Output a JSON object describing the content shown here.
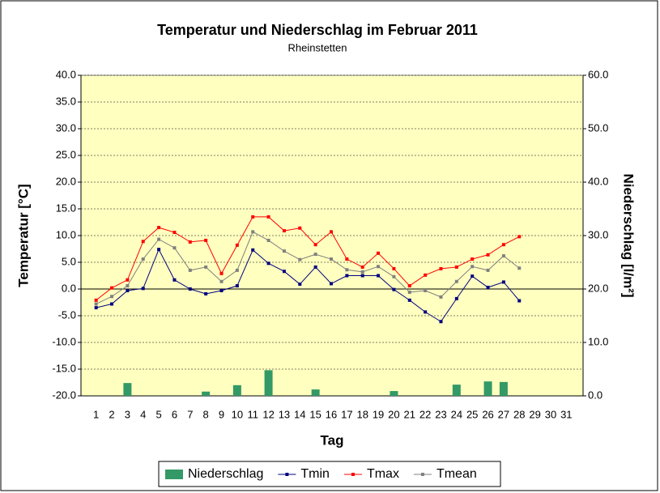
{
  "chart_data": {
    "type": "combo",
    "title": "Temperatur und Niederschlag im Februar 2011",
    "subtitle": "Rheinstetten",
    "xlabel": "Tag",
    "ylabel": "Temperatur [°C]",
    "y2label": "Niederschlag [l/m²]",
    "categories": [
      "1",
      "2",
      "3",
      "4",
      "5",
      "6",
      "7",
      "8",
      "9",
      "10",
      "11",
      "12",
      "13",
      "14",
      "15",
      "16",
      "17",
      "18",
      "19",
      "20",
      "21",
      "22",
      "23",
      "24",
      "25",
      "26",
      "27",
      "28",
      "29",
      "30",
      "31"
    ],
    "series": [
      {
        "name": "Niederschlag",
        "type": "bar",
        "axis": "y2",
        "color": "#339966",
        "values": [
          0,
          0,
          2.4,
          0,
          0,
          0,
          0,
          0.8,
          0,
          2.0,
          0,
          4.8,
          0,
          0,
          1.2,
          0,
          0,
          0,
          0,
          0.9,
          0,
          0,
          0,
          2.1,
          0,
          2.7,
          2.6,
          0,
          null,
          null,
          null
        ]
      },
      {
        "name": "Tmin",
        "type": "line",
        "color": "#000080",
        "values": [
          -3.5,
          -2.8,
          -0.3,
          0.1,
          7.4,
          1.7,
          0,
          -0.9,
          -0.3,
          0.6,
          7.3,
          4.8,
          3.3,
          0.9,
          4.1,
          1.0,
          2.5,
          2.5,
          2.5,
          -0.1,
          -2.1,
          -4.3,
          -6.1,
          -1.8,
          2.4,
          0.3,
          1.3,
          -2.2,
          null,
          null,
          null
        ]
      },
      {
        "name": "Tmax",
        "type": "line",
        "color": "#ff0000",
        "values": [
          -2.1,
          0.2,
          1.7,
          8.9,
          11.5,
          10.6,
          8.8,
          9.1,
          2.9,
          8.2,
          13.5,
          13.5,
          10.9,
          11.4,
          8.3,
          10.7,
          5.6,
          4.1,
          6.7,
          3.8,
          0.6,
          2.6,
          3.8,
          4.1,
          5.6,
          6.4,
          8.3,
          9.8,
          null,
          null,
          null
        ]
      },
      {
        "name": "Tmean",
        "type": "line",
        "color": "#808080",
        "values": [
          -2.8,
          -1.4,
          0.6,
          5.6,
          9.3,
          7.7,
          3.5,
          4.1,
          1.4,
          3.5,
          10.7,
          9.1,
          7.1,
          5.5,
          6.5,
          5.6,
          3.6,
          3.2,
          4.2,
          2.3,
          -0.6,
          -0.3,
          -1.5,
          1.4,
          4.2,
          3.5,
          6.2,
          3.9,
          null,
          null,
          null
        ]
      }
    ],
    "ylim": [
      -20,
      40
    ],
    "yticks": [
      {
        "value": 40,
        "label": "40.0"
      },
      {
        "value": 35,
        "label": "35.0"
      },
      {
        "value": 30,
        "label": "30.0"
      },
      {
        "value": 25,
        "label": "25.0"
      },
      {
        "value": 20,
        "label": "20.0"
      },
      {
        "value": 15,
        "label": "15.0"
      },
      {
        "value": 10,
        "label": "10.0"
      },
      {
        "value": 5,
        "label": "5.0"
      },
      {
        "value": 0,
        "label": "0.0"
      },
      {
        "value": -5,
        "label": "-5.0"
      },
      {
        "value": -10,
        "label": "-10.0"
      },
      {
        "value": -15,
        "label": "-15.0"
      },
      {
        "value": -20,
        "label": "-20.0"
      }
    ],
    "y2lim": [
      0,
      60
    ],
    "y2ticks": [
      {
        "value": 60,
        "label": "60.0"
      },
      {
        "value": 50,
        "label": "50.0"
      },
      {
        "value": 40,
        "label": "40.0"
      },
      {
        "value": 30,
        "label": "30.0"
      },
      {
        "value": 20,
        "label": "20.0"
      },
      {
        "value": 10,
        "label": "10.0"
      },
      {
        "value": 0,
        "label": "0.0"
      }
    ],
    "grid": true,
    "legend": "bottom"
  }
}
